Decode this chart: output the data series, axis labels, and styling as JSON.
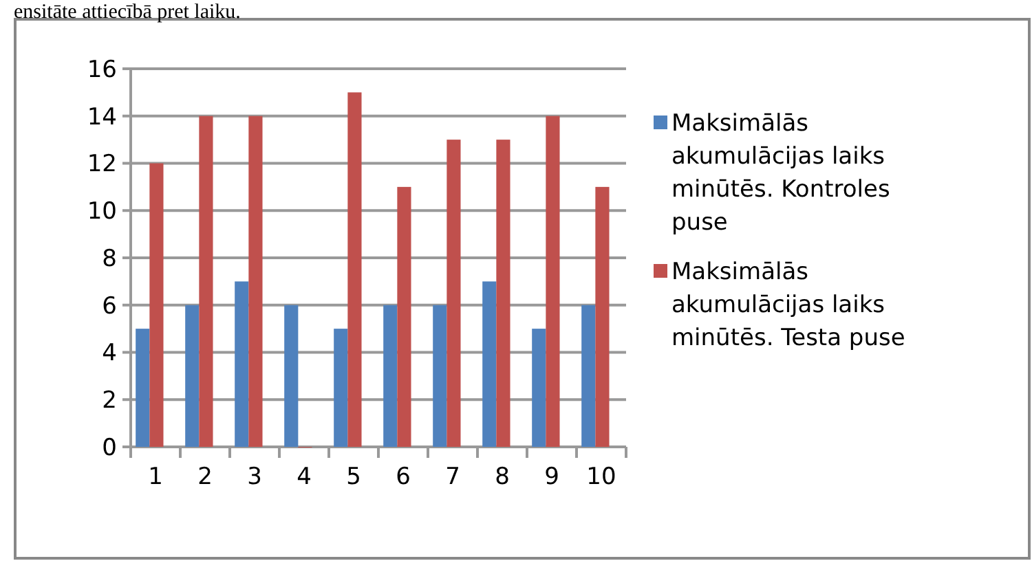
{
  "chart_data": {
    "type": "bar",
    "categories": [
      "1",
      "2",
      "3",
      "4",
      "5",
      "6",
      "7",
      "8",
      "9",
      "10"
    ],
    "series": [
      {
        "name": "Maksimālās akumulācijas laiks minūtēs. Kontroles puse",
        "color": "#4f81bd",
        "values": [
          5,
          6,
          7,
          6,
          5,
          6,
          6,
          7,
          5,
          6
        ]
      },
      {
        "name": "Maksimālās akumulācijas laiks minūtēs. Testa puse",
        "color": "#c0504d",
        "values": [
          12,
          14,
          14,
          0,
          15,
          11,
          13,
          13,
          14,
          11
        ]
      }
    ],
    "ylim": [
      0,
      16
    ],
    "yticks": [
      0,
      2,
      4,
      6,
      8,
      10,
      12,
      14,
      16
    ],
    "grid": "y",
    "legend": "right",
    "annotations": [
      "ensitāte attiecībā pret laiku."
    ]
  }
}
